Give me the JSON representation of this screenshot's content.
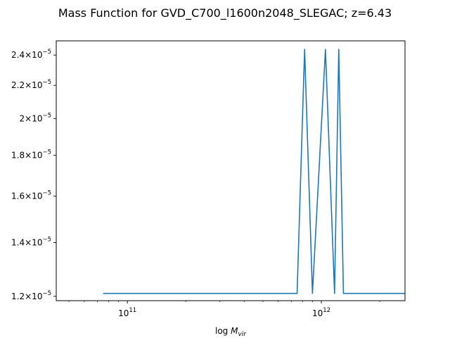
{
  "chart_data": {
    "type": "line",
    "title": "Mass Function for GVD_C700_l1600n2048_SLEGAC; z=6.43",
    "xlabel": "log M_vir",
    "ylabel": "",
    "x_scale": "log",
    "y_scale": "log",
    "xlim": [
      43000000000.0,
      2700000000000.0
    ],
    "ylim": [
      1.185e-05,
      2.5e-05
    ],
    "grid": false,
    "color": "#1f77b4",
    "x_ticks": [
      {
        "value": 100000000000.0,
        "base": "10",
        "exp": "11"
      },
      {
        "value": 1000000000000.0,
        "base": "10",
        "exp": "12"
      }
    ],
    "y_ticks": [
      {
        "value": 1.2e-05,
        "mant": "1.2",
        "times": "×",
        "base": "10",
        "exp": "−5"
      },
      {
        "value": 1.4e-05,
        "mant": "1.4",
        "times": "×",
        "base": "10",
        "exp": "−5"
      },
      {
        "value": 1.6e-05,
        "mant": "1.6",
        "times": "×",
        "base": "10",
        "exp": "−5"
      },
      {
        "value": 1.8e-05,
        "mant": "1.8",
        "times": "×",
        "base": "10",
        "exp": "−5"
      },
      {
        "value": 2e-05,
        "mant": "2",
        "times": "×",
        "base": "10",
        "exp": "−5"
      },
      {
        "value": 2.2e-05,
        "mant": "2.2",
        "times": "×",
        "base": "10",
        "exp": "−5"
      },
      {
        "value": 2.4e-05,
        "mant": "2.4",
        "times": "×",
        "base": "10",
        "exp": "−5"
      }
    ],
    "series": [
      {
        "x": [
          75000000000.0,
          750000000000.0,
          820000000000.0,
          900000000000.0,
          1050000000000.0,
          1170000000000.0,
          1230000000000.0,
          1300000000000.0,
          2700000000000.0
        ],
        "y": [
          1.21e-05,
          1.21e-05,
          2.44e-05,
          1.21e-05,
          2.44e-05,
          1.21e-05,
          2.44e-05,
          1.21e-05,
          1.21e-05
        ]
      }
    ]
  }
}
